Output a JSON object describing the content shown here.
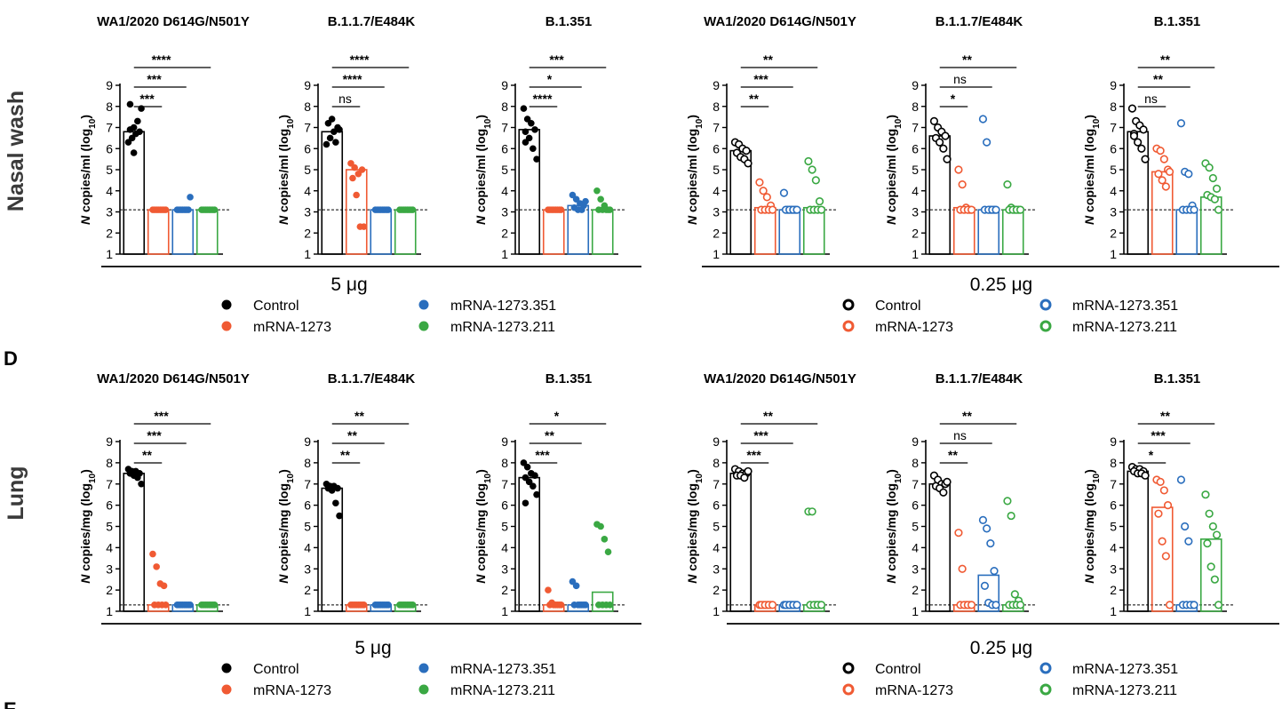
{
  "figure": {
    "row_labels": [
      "Nasal wash",
      "Lung"
    ],
    "panel_letters": [
      "D",
      "E"
    ],
    "dose_labels": [
      "5 μg",
      "0.25 μg"
    ],
    "legend": [
      {
        "label": "Control",
        "color": "#000000"
      },
      {
        "label": "mRNA-1273",
        "color": "#f05a33"
      },
      {
        "label": "mRNA-1273.351",
        "color": "#2a6ebd"
      },
      {
        "label": "mRNA-1273.211",
        "color": "#3aa843"
      }
    ],
    "y_axis_labels": {
      "nasal": {
        "prefix": "N",
        "main": " copies/ml  (log",
        "sub": "10",
        "suffix": ")"
      },
      "lung": {
        "prefix": "N",
        "main": " copies/mg  (log",
        "sub": "10",
        "suffix": ")"
      }
    }
  },
  "chart_data": [
    {
      "type": "bar",
      "row": "Nasal wash",
      "dose": "5 μg",
      "title": "WA1/2020 D614G/N501Y",
      "filled": true,
      "ylim": [
        1,
        9
      ],
      "lod": 3.1,
      "categories": [
        "Control",
        "mRNA-1273",
        "mRNA-1273.351",
        "mRNA-1273.211"
      ],
      "values": [
        6.8,
        3.1,
        3.1,
        3.1
      ],
      "points": [
        [
          6.3,
          6.5,
          6.7,
          6.8,
          6.9,
          7.0,
          7.3,
          7.9,
          8.1,
          5.8
        ],
        [
          3.1,
          3.1,
          3.1,
          3.1,
          3.1,
          3.1,
          3.1,
          3.1
        ],
        [
          3.1,
          3.1,
          3.1,
          3.1,
          3.1,
          3.1,
          3.1,
          3.7
        ],
        [
          3.1,
          3.1,
          3.1,
          3.1,
          3.1,
          3.1,
          3.1,
          3.1
        ]
      ],
      "comparisons": [
        {
          "to": 1,
          "label": "***"
        },
        {
          "to": 2,
          "label": "***"
        },
        {
          "to": 3,
          "label": "****"
        }
      ]
    },
    {
      "type": "bar",
      "row": "Nasal wash",
      "dose": "5 μg",
      "title": "B.1.1.7/E484K",
      "filled": true,
      "ylim": [
        1,
        9
      ],
      "lod": 3.1,
      "categories": [
        "Control",
        "mRNA-1273",
        "mRNA-1273.351",
        "mRNA-1273.211"
      ],
      "values": [
        6.8,
        5.0,
        3.1,
        3.1
      ],
      "points": [
        [
          6.2,
          6.5,
          6.8,
          7.0,
          7.2,
          7.4,
          6.3,
          6.9
        ],
        [
          5.3,
          5.1,
          4.8,
          5.0,
          4.6,
          3.8,
          2.3,
          2.3
        ],
        [
          3.1,
          3.1,
          3.1,
          3.1,
          3.1,
          3.1,
          3.1,
          3.1
        ],
        [
          3.1,
          3.1,
          3.1,
          3.1,
          3.1,
          3.1,
          3.1,
          3.1
        ]
      ],
      "comparisons": [
        {
          "to": 1,
          "label": "ns"
        },
        {
          "to": 2,
          "label": "****"
        },
        {
          "to": 3,
          "label": "****"
        }
      ]
    },
    {
      "type": "bar",
      "row": "Nasal wash",
      "dose": "5 μg",
      "title": "B.1.351",
      "filled": true,
      "ylim": [
        1,
        9
      ],
      "lod": 3.1,
      "categories": [
        "Control",
        "mRNA-1273",
        "mRNA-1273.351",
        "mRNA-1273.211"
      ],
      "values": [
        6.9,
        3.1,
        3.3,
        3.1
      ],
      "points": [
        [
          7.9,
          7.4,
          7.2,
          6.9,
          6.8,
          6.5,
          6.0,
          5.5,
          6.3
        ],
        [
          3.1,
          3.1,
          3.1,
          3.1,
          3.1,
          3.1,
          3.1,
          3.1
        ],
        [
          3.8,
          3.6,
          3.4,
          3.3,
          3.2,
          3.1,
          3.1,
          3.5
        ],
        [
          4.0,
          3.6,
          3.3,
          3.1,
          3.1,
          3.1,
          3.1,
          3.1
        ]
      ],
      "comparisons": [
        {
          "to": 1,
          "label": "****"
        },
        {
          "to": 2,
          "label": "*"
        },
        {
          "to": 3,
          "label": "***"
        }
      ]
    },
    {
      "type": "bar",
      "row": "Nasal wash",
      "dose": "0.25 μg",
      "title": "WA1/2020 D614G/N501Y",
      "filled": false,
      "ylim": [
        1,
        9
      ],
      "lod": 3.1,
      "categories": [
        "Control",
        "mRNA-1273",
        "mRNA-1273.351",
        "mRNA-1273.211"
      ],
      "values": [
        5.9,
        3.2,
        3.1,
        3.2
      ],
      "points": [
        [
          6.3,
          6.2,
          6.0,
          5.9,
          5.8,
          5.6,
          5.5,
          5.3
        ],
        [
          4.4,
          4.0,
          3.7,
          3.3,
          3.1,
          3.1,
          3.1,
          3.1
        ],
        [
          3.9,
          3.1,
          3.1,
          3.1,
          3.1,
          3.1,
          3.1,
          3.1
        ],
        [
          5.4,
          5.0,
          4.5,
          3.5,
          3.1,
          3.1,
          3.1,
          3.1
        ]
      ],
      "comparisons": [
        {
          "to": 1,
          "label": "**"
        },
        {
          "to": 2,
          "label": "***"
        },
        {
          "to": 3,
          "label": "**"
        }
      ]
    },
    {
      "type": "bar",
      "row": "Nasal wash",
      "dose": "0.25 μg",
      "title": "B.1.1.7/E484K",
      "filled": false,
      "ylim": [
        1,
        9
      ],
      "lod": 3.1,
      "categories": [
        "Control",
        "mRNA-1273",
        "mRNA-1273.351",
        "mRNA-1273.211"
      ],
      "values": [
        6.6,
        3.2,
        3.1,
        3.1
      ],
      "points": [
        [
          7.3,
          7.0,
          6.8,
          6.6,
          6.5,
          6.3,
          6.0,
          5.5
        ],
        [
          5.0,
          4.3,
          3.2,
          3.1,
          3.1,
          3.1,
          3.1,
          3.1
        ],
        [
          7.4,
          6.3,
          3.1,
          3.1,
          3.1,
          3.1,
          3.1,
          3.1
        ],
        [
          4.3,
          3.2,
          3.1,
          3.1,
          3.1,
          3.1,
          3.1,
          3.1
        ]
      ],
      "comparisons": [
        {
          "to": 1,
          "label": "*"
        },
        {
          "to": 2,
          "label": "ns"
        },
        {
          "to": 3,
          "label": "**"
        }
      ]
    },
    {
      "type": "bar",
      "row": "Nasal wash",
      "dose": "0.25 μg",
      "title": "B.1.351",
      "filled": false,
      "ylim": [
        1,
        9
      ],
      "lod": 3.1,
      "categories": [
        "Control",
        "mRNA-1273",
        "mRNA-1273.351",
        "mRNA-1273.211"
      ],
      "values": [
        6.8,
        4.9,
        3.1,
        3.7
      ],
      "points": [
        [
          7.9,
          7.3,
          7.1,
          6.9,
          6.7,
          6.3,
          6.0,
          5.5,
          6.6
        ],
        [
          6.0,
          5.9,
          5.5,
          5.0,
          4.8,
          4.5,
          4.2,
          4.9
        ],
        [
          7.2,
          4.9,
          4.8,
          3.3,
          3.1,
          3.1,
          3.1,
          3.1
        ],
        [
          5.3,
          5.1,
          4.6,
          4.1,
          3.8,
          3.7,
          3.6,
          3.1
        ]
      ],
      "comparisons": [
        {
          "to": 1,
          "label": "ns"
        },
        {
          "to": 2,
          "label": "**"
        },
        {
          "to": 3,
          "label": "**"
        }
      ]
    },
    {
      "type": "bar",
      "row": "Lung",
      "dose": "5 μg",
      "title": "WA1/2020 D614G/N501Y",
      "filled": true,
      "ylim": [
        1,
        9
      ],
      "lod": 1.3,
      "categories": [
        "Control",
        "mRNA-1273",
        "mRNA-1273.351",
        "mRNA-1273.211"
      ],
      "values": [
        7.5,
        1.3,
        1.3,
        1.3
      ],
      "points": [
        [
          7.7,
          7.6,
          7.6,
          7.5,
          7.5,
          7.4,
          7.3,
          7.0
        ],
        [
          3.7,
          3.1,
          2.3,
          2.2,
          1.3,
          1.3,
          1.3,
          1.3
        ],
        [
          1.3,
          1.3,
          1.3,
          1.3,
          1.3,
          1.3,
          1.3,
          1.3
        ],
        [
          1.3,
          1.3,
          1.3,
          1.3,
          1.3,
          1.3,
          1.3,
          1.3
        ]
      ],
      "comparisons": [
        {
          "to": 1,
          "label": "**"
        },
        {
          "to": 2,
          "label": "***"
        },
        {
          "to": 3,
          "label": "***"
        }
      ]
    },
    {
      "type": "bar",
      "row": "Lung",
      "dose": "5 μg",
      "title": "B.1.1.7/E484K",
      "filled": true,
      "ylim": [
        1,
        9
      ],
      "lod": 1.3,
      "categories": [
        "Control",
        "mRNA-1273",
        "mRNA-1273.351",
        "mRNA-1273.211"
      ],
      "values": [
        6.8,
        1.3,
        1.3,
        1.3
      ],
      "points": [
        [
          7.0,
          6.9,
          6.9,
          6.8,
          6.8,
          6.7,
          6.1,
          5.5
        ],
        [
          1.3,
          1.3,
          1.3,
          1.3,
          1.3,
          1.3,
          1.3,
          1.3
        ],
        [
          1.3,
          1.3,
          1.3,
          1.3,
          1.3,
          1.3,
          1.3,
          1.3
        ],
        [
          1.3,
          1.3,
          1.3,
          1.3,
          1.3,
          1.3,
          1.3,
          1.3
        ]
      ],
      "comparisons": [
        {
          "to": 1,
          "label": "**"
        },
        {
          "to": 2,
          "label": "**"
        },
        {
          "to": 3,
          "label": "**"
        }
      ]
    },
    {
      "type": "bar",
      "row": "Lung",
      "dose": "5 μg",
      "title": "B.1.351",
      "filled": true,
      "ylim": [
        1,
        9
      ],
      "lod": 1.3,
      "categories": [
        "Control",
        "mRNA-1273",
        "mRNA-1273.351",
        "mRNA-1273.211"
      ],
      "values": [
        7.3,
        1.3,
        1.3,
        1.9
      ],
      "points": [
        [
          8.0,
          7.8,
          7.5,
          7.4,
          7.3,
          7.1,
          6.9,
          6.5,
          6.1
        ],
        [
          2.0,
          1.4,
          1.3,
          1.3,
          1.3,
          1.3,
          1.3,
          1.3
        ],
        [
          2.4,
          2.2,
          1.3,
          1.3,
          1.3,
          1.3,
          1.3,
          1.3
        ],
        [
          5.1,
          5.0,
          4.4,
          3.8,
          1.3,
          1.3,
          1.3,
          1.3
        ]
      ],
      "comparisons": [
        {
          "to": 1,
          "label": "***"
        },
        {
          "to": 2,
          "label": "**"
        },
        {
          "to": 3,
          "label": "*"
        }
      ]
    },
    {
      "type": "bar",
      "row": "Lung",
      "dose": "0.25 μg",
      "title": "WA1/2020 D614G/N501Y",
      "filled": false,
      "ylim": [
        1,
        9
      ],
      "lod": 1.3,
      "categories": [
        "Control",
        "mRNA-1273",
        "mRNA-1273.351",
        "mRNA-1273.211"
      ],
      "values": [
        7.5,
        1.3,
        1.3,
        1.3
      ],
      "points": [
        [
          7.7,
          7.6,
          7.5,
          7.5,
          7.4,
          7.4,
          7.3,
          7.6
        ],
        [
          1.3,
          1.3,
          1.3,
          1.3,
          1.3,
          1.3,
          1.3,
          1.3
        ],
        [
          1.3,
          1.3,
          1.3,
          1.3,
          1.3,
          1.3,
          1.3,
          1.3
        ],
        [
          5.7,
          5.7,
          1.3,
          1.3,
          1.3,
          1.3,
          1.3,
          1.3
        ]
      ],
      "comparisons": [
        {
          "to": 1,
          "label": "***"
        },
        {
          "to": 2,
          "label": "***"
        },
        {
          "to": 3,
          "label": "**"
        }
      ]
    },
    {
      "type": "bar",
      "row": "Lung",
      "dose": "0.25 μg",
      "title": "B.1.1.7/E484K",
      "filled": false,
      "ylim": [
        1,
        9
      ],
      "lod": 1.3,
      "categories": [
        "Control",
        "mRNA-1273",
        "mRNA-1273.351",
        "mRNA-1273.211"
      ],
      "values": [
        7.0,
        1.3,
        2.7,
        1.3
      ],
      "points": [
        [
          7.4,
          7.2,
          7.0,
          7.0,
          6.9,
          6.8,
          6.6,
          7.1
        ],
        [
          4.7,
          3.0,
          1.3,
          1.3,
          1.3,
          1.3,
          1.3,
          1.3
        ],
        [
          5.3,
          4.9,
          4.2,
          2.9,
          2.2,
          1.4,
          1.3,
          1.3
        ],
        [
          6.2,
          5.5,
          1.8,
          1.5,
          1.3,
          1.3,
          1.3,
          1.3
        ]
      ],
      "comparisons": [
        {
          "to": 1,
          "label": "**"
        },
        {
          "to": 2,
          "label": "ns"
        },
        {
          "to": 3,
          "label": "**"
        }
      ]
    },
    {
      "type": "bar",
      "row": "Lung",
      "dose": "0.25 μg",
      "title": "B.1.351",
      "filled": false,
      "ylim": [
        1,
        9
      ],
      "lod": 1.3,
      "categories": [
        "Control",
        "mRNA-1273",
        "mRNA-1273.351",
        "mRNA-1273.211"
      ],
      "values": [
        7.6,
        5.9,
        1.3,
        4.4
      ],
      "points": [
        [
          7.8,
          7.7,
          7.7,
          7.6,
          7.6,
          7.5,
          7.5,
          7.4
        ],
        [
          7.2,
          7.1,
          6.7,
          6.0,
          5.6,
          4.3,
          3.6,
          1.3
        ],
        [
          7.2,
          5.0,
          4.3,
          1.3,
          1.3,
          1.3,
          1.3,
          1.3
        ],
        [
          6.5,
          5.6,
          5.0,
          4.6,
          4.2,
          3.1,
          2.5,
          1.3
        ]
      ],
      "comparisons": [
        {
          "to": 1,
          "label": "*"
        },
        {
          "to": 2,
          "label": "***"
        },
        {
          "to": 3,
          "label": "**"
        }
      ]
    }
  ]
}
